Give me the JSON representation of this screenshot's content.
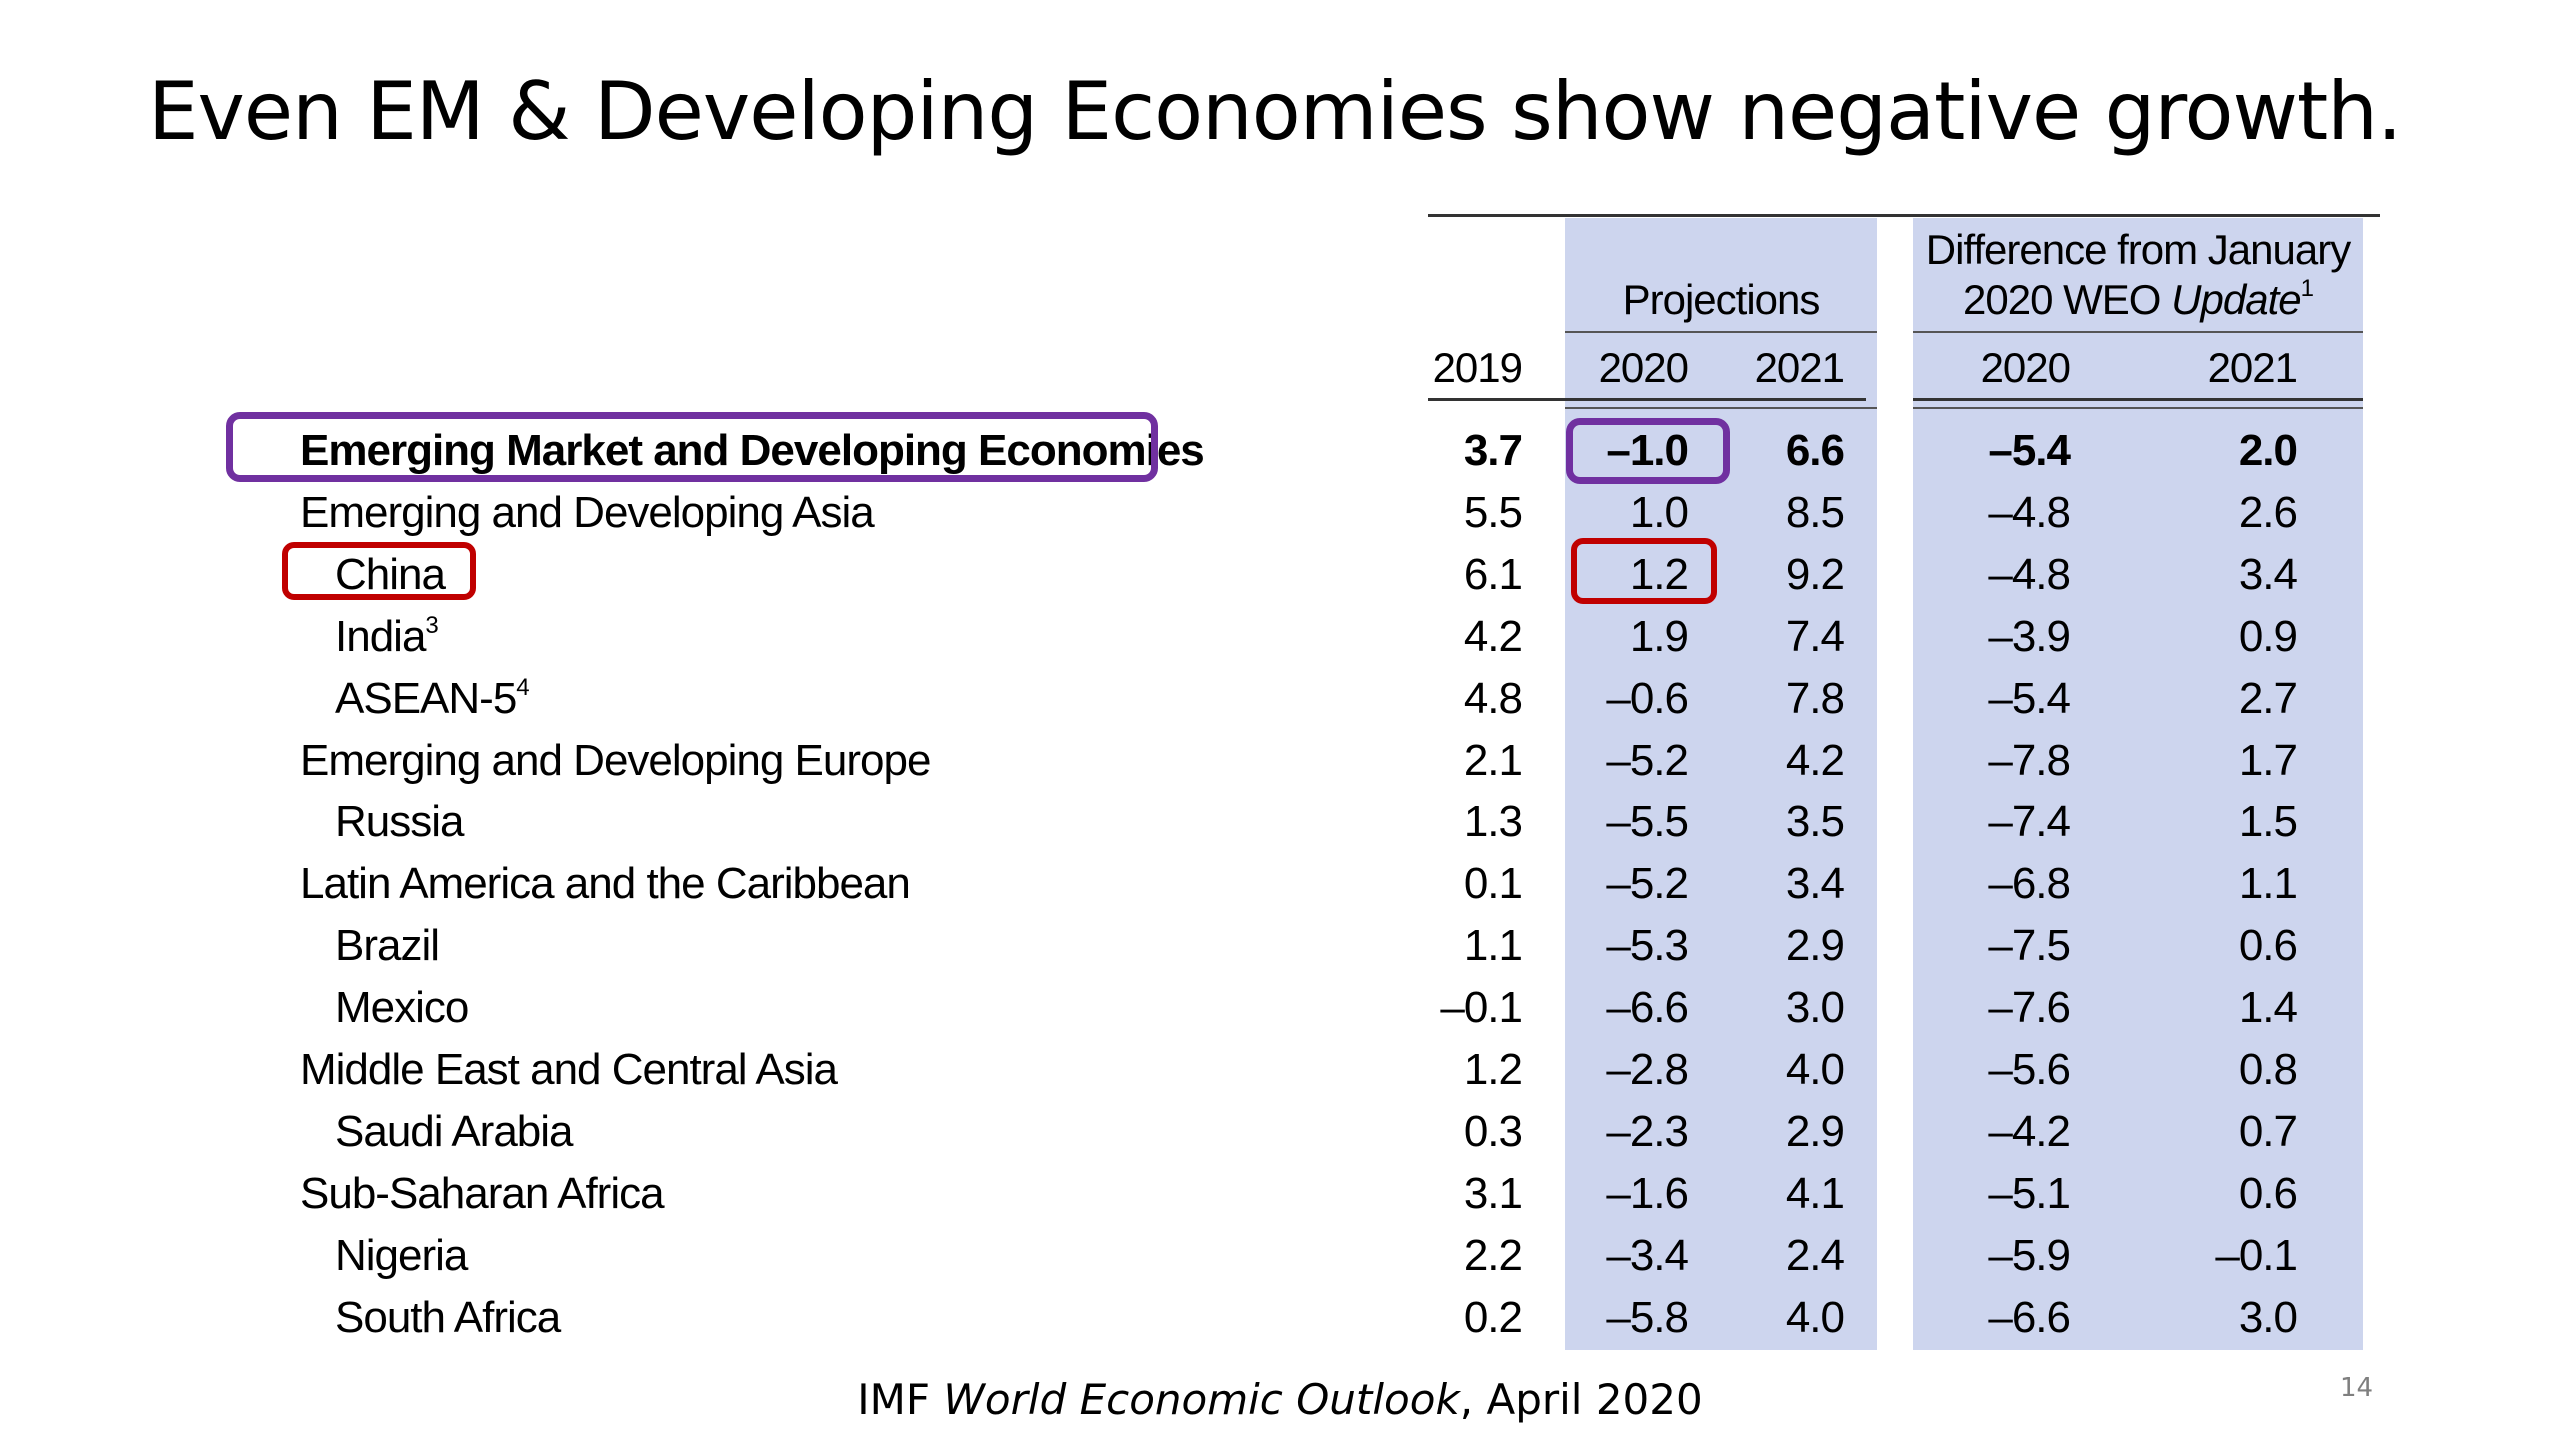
{
  "slide": {
    "title": "Even EM & Developing Economies show negative growth.",
    "page_number": "14",
    "caption_prefix": "IMF ",
    "caption_italic": "World Economic Outlook",
    "caption_suffix": ", April 2020"
  },
  "table": {
    "group_projections": "Projections",
    "group_difference_line1": "Difference from January",
    "group_difference_line2": "2020 WEO ",
    "group_difference_italic": "Update",
    "group_difference_footnote": "1",
    "columns": [
      "2019",
      "2020",
      "2021",
      "2020",
      "2021"
    ],
    "rows": [
      {
        "label": "Emerging Market and Developing Economies",
        "sup": "",
        "indent": 0,
        "bold": true,
        "values": [
          "3.7",
          "–1.0",
          "6.6",
          "–5.4",
          "2.0"
        ]
      },
      {
        "label": "Emerging and Developing Asia",
        "sup": "",
        "indent": 0,
        "bold": false,
        "values": [
          "5.5",
          "1.0",
          "8.5",
          "–4.8",
          "2.6"
        ]
      },
      {
        "label": "China",
        "sup": "",
        "indent": 1,
        "bold": false,
        "values": [
          "6.1",
          "1.2",
          "9.2",
          "–4.8",
          "3.4"
        ]
      },
      {
        "label": "India",
        "sup": "3",
        "indent": 1,
        "bold": false,
        "values": [
          "4.2",
          "1.9",
          "7.4",
          "–3.9",
          "0.9"
        ]
      },
      {
        "label": "ASEAN-5",
        "sup": "4",
        "indent": 1,
        "bold": false,
        "values": [
          "4.8",
          "–0.6",
          "7.8",
          "–5.4",
          "2.7"
        ]
      },
      {
        "label": "Emerging and Developing Europe",
        "sup": "",
        "indent": 0,
        "bold": false,
        "values": [
          "2.1",
          "–5.2",
          "4.2",
          "–7.8",
          "1.7"
        ]
      },
      {
        "label": "Russia",
        "sup": "",
        "indent": 1,
        "bold": false,
        "values": [
          "1.3",
          "–5.5",
          "3.5",
          "–7.4",
          "1.5"
        ]
      },
      {
        "label": "Latin America and the Caribbean",
        "sup": "",
        "indent": 0,
        "bold": false,
        "values": [
          "0.1",
          "–5.2",
          "3.4",
          "–6.8",
          "1.1"
        ]
      },
      {
        "label": "Brazil",
        "sup": "",
        "indent": 1,
        "bold": false,
        "values": [
          "1.1",
          "–5.3",
          "2.9",
          "–7.5",
          "0.6"
        ]
      },
      {
        "label": "Mexico",
        "sup": "",
        "indent": 1,
        "bold": false,
        "values": [
          "–0.1",
          "–6.6",
          "3.0",
          "–7.6",
          "1.4"
        ]
      },
      {
        "label": "Middle East and Central Asia",
        "sup": "",
        "indent": 0,
        "bold": false,
        "values": [
          "1.2",
          "–2.8",
          "4.0",
          "–5.6",
          "0.8"
        ]
      },
      {
        "label": "Saudi Arabia",
        "sup": "",
        "indent": 1,
        "bold": false,
        "values": [
          "0.3",
          "–2.3",
          "2.9",
          "–4.2",
          "0.7"
        ]
      },
      {
        "label": "Sub-Saharan Africa",
        "sup": "",
        "indent": 0,
        "bold": false,
        "values": [
          "3.1",
          "–1.6",
          "4.1",
          "–5.1",
          "0.6"
        ]
      },
      {
        "label": "Nigeria",
        "sup": "",
        "indent": 1,
        "bold": false,
        "values": [
          "2.2",
          "–3.4",
          "2.4",
          "–5.9",
          "–0.1"
        ]
      },
      {
        "label": "South Africa",
        "sup": "",
        "indent": 1,
        "bold": false,
        "values": [
          "0.2",
          "–5.8",
          "4.0",
          "–6.6",
          "3.0"
        ]
      }
    ]
  },
  "highlights": [
    {
      "name": "emde-label",
      "color": "#7030a0"
    },
    {
      "name": "emde-2020-value",
      "color": "#7030a0"
    },
    {
      "name": "china-label",
      "color": "#c00000"
    },
    {
      "name": "china-2020-value",
      "color": "#c00000"
    }
  ]
}
